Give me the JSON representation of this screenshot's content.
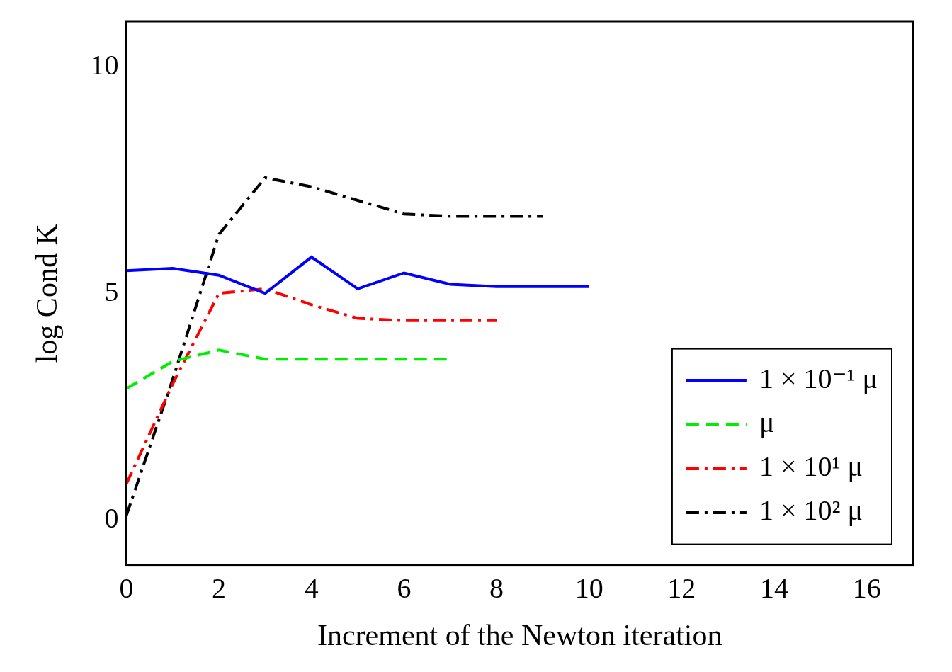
{
  "chart_data": {
    "type": "line",
    "x_label": "Increment of the Newton iteration",
    "y_label": "log Cond K",
    "xlim": [
      0,
      17
    ],
    "xticks": [
      0,
      2,
      4,
      6,
      8,
      10,
      12,
      14,
      16
    ],
    "ylim": [
      -1,
      11
    ],
    "yticks": [
      0,
      5,
      10
    ],
    "grid": false,
    "legend": "lower right",
    "series": [
      {
        "name": "1 × 10⁻¹ μ",
        "color": "#0000ff",
        "line_style": "solid",
        "x": [
          0,
          1,
          2,
          3,
          4,
          5,
          6,
          7,
          8,
          9,
          10
        ],
        "values": [
          5.5,
          5.55,
          5.4,
          5.0,
          5.8,
          5.1,
          5.45,
          5.2,
          5.15,
          5.15,
          5.15
        ]
      },
      {
        "name": "μ",
        "color": "#00ee00",
        "line_style": "dashed",
        "x": [
          0,
          1,
          2,
          3,
          4,
          5,
          6,
          7
        ],
        "values": [
          2.9,
          3.5,
          3.75,
          3.55,
          3.55,
          3.55,
          3.55,
          3.55
        ]
      },
      {
        "name": "1 × 10¹ μ",
        "color": "#ff0000",
        "line_style": "dashdot",
        "x": [
          0,
          1,
          2,
          3,
          4,
          5,
          6,
          7,
          8
        ],
        "values": [
          0.8,
          3.0,
          5.0,
          5.1,
          4.75,
          4.45,
          4.4,
          4.4,
          4.4
        ]
      },
      {
        "name": "1 × 10² μ",
        "color": "#000000",
        "line_style": "dashdot",
        "x": [
          0,
          1,
          2,
          3,
          4,
          5,
          6,
          7,
          8,
          9
        ],
        "values": [
          0.1,
          3.1,
          6.3,
          7.55,
          7.35,
          7.05,
          6.75,
          6.7,
          6.7,
          6.7
        ]
      }
    ]
  }
}
